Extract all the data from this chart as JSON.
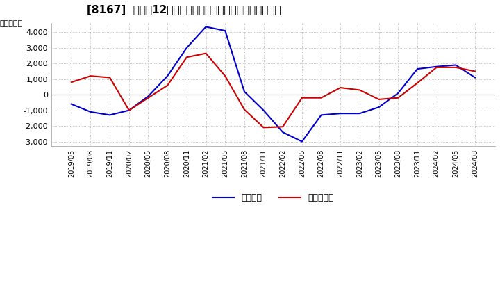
{
  "title": "[8167]  利益の12か月移動合計の対前年同期増減額の推移",
  "ylabel": "（百万円）",
  "legend_labels": [
    "経常利益",
    "当期純利益"
  ],
  "line_colors": [
    "#0000cc",
    "#cc0000"
  ],
  "ylim": [
    -3300,
    4600
  ],
  "yticks": [
    -3000,
    -2000,
    -1000,
    0,
    1000,
    2000,
    3000,
    4000
  ],
  "background_color": "#ffffff",
  "plot_background": "#ffffff",
  "grid_color": "#aaaaaa",
  "x_labels": [
    "2019/05",
    "2019/08",
    "2019/11",
    "2020/02",
    "2020/05",
    "2020/08",
    "2020/11",
    "2021/02",
    "2021/05",
    "2021/08",
    "2021/11",
    "2022/02",
    "2022/05",
    "2022/08",
    "2022/11",
    "2023/02",
    "2023/05",
    "2023/08",
    "2023/11",
    "2024/02",
    "2024/05",
    "2024/08"
  ],
  "operating_profit": [
    -600,
    -1100,
    -1300,
    -1000,
    -100,
    1200,
    3000,
    4350,
    4100,
    200,
    -1000,
    -2400,
    -3000,
    -1300,
    -1200,
    -1200,
    -800,
    100,
    1650,
    1800,
    1900,
    1100
  ],
  "net_profit": [
    800,
    1200,
    1100,
    -1000,
    -200,
    600,
    2400,
    2650,
    1200,
    -950,
    -2100,
    -2050,
    -200,
    -200,
    450,
    300,
    -300,
    -200,
    750,
    1750,
    1750,
    1500
  ]
}
